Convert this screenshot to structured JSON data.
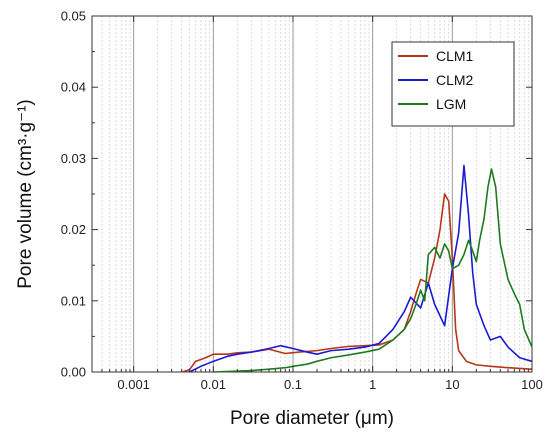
{
  "chart_data": {
    "type": "line",
    "xlabel": "Pore diameter (μm)",
    "ylabel": "Pore volume (cm³·g⁻¹)",
    "x_scale": "log",
    "xlim": [
      0.0003,
      100
    ],
    "ylim": [
      0,
      0.05
    ],
    "x_ticks": [
      {
        "value": 0.001,
        "label": "0.001"
      },
      {
        "value": 0.01,
        "label": "0.01"
      },
      {
        "value": 0.1,
        "label": "0.1"
      },
      {
        "value": 1,
        "label": "1"
      },
      {
        "value": 10,
        "label": "10"
      },
      {
        "value": 100,
        "label": "100"
      }
    ],
    "y_ticks": [
      {
        "value": 0,
        "label": "0.00"
      },
      {
        "value": 0.01,
        "label": "0.01"
      },
      {
        "value": 0.02,
        "label": "0.02"
      },
      {
        "value": 0.03,
        "label": "0.03"
      },
      {
        "value": 0.04,
        "label": "0.04"
      },
      {
        "value": 0.05,
        "label": "0.05"
      }
    ],
    "grid": "vertical-log-minor",
    "legend_position": "top-right",
    "series": [
      {
        "name": "CLM1",
        "color": "#b5371a",
        "points": [
          [
            0.004,
            0
          ],
          [
            0.005,
            0.0003
          ],
          [
            0.006,
            0.0015
          ],
          [
            0.008,
            0.002
          ],
          [
            0.01,
            0.0025
          ],
          [
            0.015,
            0.0025
          ],
          [
            0.02,
            0.0027
          ],
          [
            0.03,
            0.0028
          ],
          [
            0.05,
            0.0032
          ],
          [
            0.08,
            0.0026
          ],
          [
            0.12,
            0.0028
          ],
          [
            0.2,
            0.003
          ],
          [
            0.3,
            0.0033
          ],
          [
            0.5,
            0.0036
          ],
          [
            0.8,
            0.0037
          ],
          [
            1.2,
            0.0038
          ],
          [
            1.8,
            0.0045
          ],
          [
            2.5,
            0.006
          ],
          [
            3,
            0.0085
          ],
          [
            3.5,
            0.011
          ],
          [
            4,
            0.013
          ],
          [
            5,
            0.0125
          ],
          [
            6,
            0.016
          ],
          [
            7,
            0.02
          ],
          [
            8,
            0.025
          ],
          [
            9,
            0.024
          ],
          [
            10,
            0.016
          ],
          [
            11,
            0.006
          ],
          [
            12,
            0.003
          ],
          [
            15,
            0.0015
          ],
          [
            20,
            0.001
          ],
          [
            30,
            0.0008
          ],
          [
            50,
            0.0006
          ],
          [
            100,
            0.0004
          ]
        ]
      },
      {
        "name": "CLM2",
        "color": "#1a1ad4",
        "points": [
          [
            0.005,
            0
          ],
          [
            0.007,
            0.0008
          ],
          [
            0.01,
            0.0015
          ],
          [
            0.015,
            0.0022
          ],
          [
            0.02,
            0.0025
          ],
          [
            0.03,
            0.0028
          ],
          [
            0.05,
            0.0033
          ],
          [
            0.07,
            0.0037
          ],
          [
            0.1,
            0.0033
          ],
          [
            0.15,
            0.0028
          ],
          [
            0.2,
            0.0025
          ],
          [
            0.3,
            0.003
          ],
          [
            0.5,
            0.0032
          ],
          [
            0.8,
            0.0035
          ],
          [
            1.2,
            0.004
          ],
          [
            1.8,
            0.006
          ],
          [
            2.5,
            0.0085
          ],
          [
            3,
            0.0105
          ],
          [
            4,
            0.009
          ],
          [
            5,
            0.0125
          ],
          [
            6,
            0.0095
          ],
          [
            8,
            0.0065
          ],
          [
            10,
            0.0145
          ],
          [
            12,
            0.0195
          ],
          [
            14,
            0.029
          ],
          [
            16,
            0.022
          ],
          [
            18,
            0.014
          ],
          [
            20,
            0.0095
          ],
          [
            25,
            0.0065
          ],
          [
            30,
            0.0045
          ],
          [
            40,
            0.005
          ],
          [
            50,
            0.0035
          ],
          [
            70,
            0.002
          ],
          [
            100,
            0.0015
          ]
        ]
      },
      {
        "name": "LGM",
        "color": "#1f7a1f",
        "points": [
          [
            0.01,
            0
          ],
          [
            0.03,
            0.0002
          ],
          [
            0.05,
            0.0004
          ],
          [
            0.08,
            0.0006
          ],
          [
            0.1,
            0.0008
          ],
          [
            0.15,
            0.0011
          ],
          [
            0.2,
            0.0015
          ],
          [
            0.3,
            0.002
          ],
          [
            0.5,
            0.0024
          ],
          [
            0.8,
            0.0028
          ],
          [
            1.2,
            0.0032
          ],
          [
            1.8,
            0.0045
          ],
          [
            2.5,
            0.006
          ],
          [
            3,
            0.0075
          ],
          [
            3.5,
            0.0095
          ],
          [
            4,
            0.0115
          ],
          [
            4.5,
            0.01
          ],
          [
            5,
            0.0165
          ],
          [
            6,
            0.0175
          ],
          [
            7,
            0.016
          ],
          [
            8,
            0.018
          ],
          [
            9,
            0.017
          ],
          [
            10,
            0.0145
          ],
          [
            12,
            0.015
          ],
          [
            14,
            0.0165
          ],
          [
            16,
            0.0185
          ],
          [
            18,
            0.017
          ],
          [
            20,
            0.0155
          ],
          [
            22,
            0.0185
          ],
          [
            25,
            0.0215
          ],
          [
            28,
            0.026
          ],
          [
            31,
            0.0285
          ],
          [
            35,
            0.026
          ],
          [
            40,
            0.018
          ],
          [
            50,
            0.013
          ],
          [
            60,
            0.011
          ],
          [
            70,
            0.0095
          ],
          [
            80,
            0.006
          ],
          [
            100,
            0.0035
          ]
        ]
      }
    ]
  }
}
